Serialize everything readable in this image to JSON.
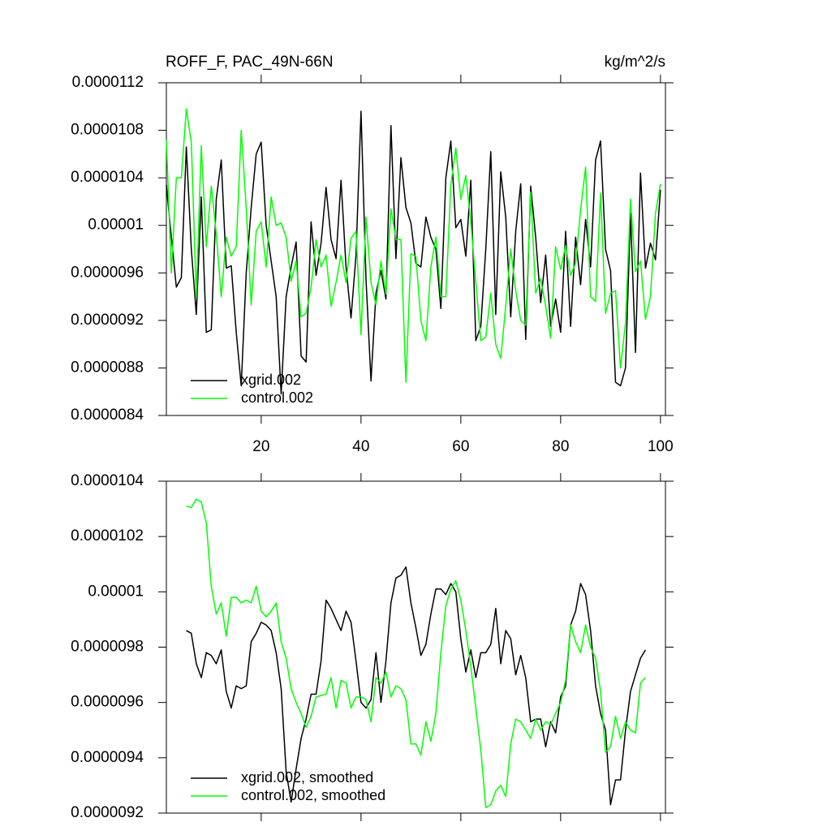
{
  "chart_data": [
    {
      "type": "line",
      "title": "ROFF_F, PAC_49N-66N",
      "units": "kg/m^2/s",
      "x": [
        1,
        2,
        3,
        4,
        5,
        6,
        7,
        8,
        9,
        10,
        11,
        12,
        13,
        14,
        15,
        16,
        17,
        18,
        19,
        20,
        21,
        22,
        23,
        24,
        25,
        26,
        27,
        28,
        29,
        30,
        31,
        32,
        33,
        34,
        35,
        36,
        37,
        38,
        39,
        40,
        41,
        42,
        43,
        44,
        45,
        46,
        47,
        48,
        49,
        50,
        51,
        52,
        53,
        54,
        55,
        56,
        57,
        58,
        59,
        60,
        61,
        62,
        63,
        64,
        65,
        66,
        67,
        68,
        69,
        70,
        71,
        72,
        73,
        74,
        75,
        76,
        77,
        78,
        79,
        80,
        81,
        82,
        83,
        84,
        85,
        86,
        87,
        88,
        89,
        90,
        91,
        92,
        93,
        94,
        95,
        96,
        97,
        98,
        99,
        100
      ],
      "series": [
        {
          "name": "xgrid.002",
          "color": "#000000",
          "values": [
            1.034e-05,
            9.9e-06,
            9.48e-06,
            9.56e-06,
            1.066e-05,
            9.8e-06,
            9.25e-06,
            1.024e-05,
            9.1e-06,
            9.12e-06,
            1.022e-05,
            1.055e-05,
            9.64e-06,
            9.66e-06,
            9.1e-06,
            8.65e-06,
            9.6e-06,
            1.015e-05,
            1.06e-05,
            1.07e-05,
            1e-05,
            9.7e-06,
            9.4e-06,
            8.58e-06,
            9.4e-06,
            9.65e-06,
            9.86e-06,
            8.9e-06,
            8.85e-06,
            1.003e-05,
            9.58e-06,
            9.85e-06,
            1.032e-05,
            9.88e-06,
            9.72e-06,
            1.038e-05,
            9.65e-06,
            9.22e-06,
            9.75e-06,
            1.096e-05,
            9.55e-06,
            8.69e-06,
            9.43e-06,
            9.62e-06,
            9.38e-06,
            1.084e-05,
            9.72e-06,
            1.057e-05,
            1.015e-05,
            1.002e-05,
            9.68e-06,
            9.65e-06,
            1.007e-05,
            9.9e-06,
            9.8e-06,
            9.3e-06,
            1.04e-05,
            1.071e-05,
            9.98e-06,
            1.005e-05,
            9.74e-06,
            1.038e-05,
            9.03e-06,
            9.15e-06,
            9.8e-06,
            1.062e-05,
            9.25e-06,
            1.045e-05,
            1.007e-05,
            9.23e-06,
            9.95e-06,
            1.035e-05,
            9.04e-06,
            1.033e-05,
            9.9e-06,
            9.35e-06,
            9.75e-06,
            9.15e-06,
            9.38e-06,
            9.1e-06,
            9.95e-06,
            9.15e-06,
            9.9e-06,
            9.5e-06,
            1.005e-05,
            9.65e-06,
            1.055e-05,
            1.071e-05,
            9.8e-06,
            9.62e-06,
            8.68e-06,
            8.65e-06,
            8.8e-06,
            1.01e-05,
            8.93e-06,
            1.044e-05,
            9.64e-06,
            9.85e-06,
            9.71e-06,
            1.03e-05
          ]
        },
        {
          "name": "control.002",
          "color": "#00ff00",
          "values": [
            1.072e-05,
            9.6e-06,
            1.04e-05,
            1.04e-05,
            1.098e-05,
            1.07e-05,
            9.4e-06,
            1.067e-05,
            9.82e-06,
            1.033e-05,
            9.93e-06,
            9.4e-06,
            9.9e-06,
            9.74e-06,
            9.82e-06,
            1.08e-05,
            1.015e-05,
            9.33e-06,
            9.95e-06,
            1.003e-05,
            9.65e-06,
            1.024e-05,
            1e-05,
            1.002e-05,
            9.9e-06,
            9.53e-06,
            9.7e-06,
            9.23e-06,
            9.26e-06,
            9.48e-06,
            9.88e-06,
            9.65e-06,
            9.75e-06,
            9.32e-06,
            9.52e-06,
            9.75e-06,
            9.52e-06,
            9.89e-06,
            9.95e-06,
            9.08e-06,
            1.007e-05,
            9.52e-06,
            9.33e-06,
            9.7e-06,
            9.42e-06,
            1.014e-05,
            9.88e-06,
            9.88e-06,
            8.68e-06,
            9.76e-06,
            9.74e-06,
            9.2e-06,
            9.03e-06,
            9.65e-06,
            9.9e-06,
            9.4e-06,
            9.4e-06,
            1.034e-05,
            1.065e-05,
            1.022e-05,
            1.042e-05,
            1.003e-05,
            9.53e-06,
            9.03e-06,
            9.06e-06,
            9.43e-06,
            9e-06,
            8.88e-06,
            9.32e-06,
            9.8e-06,
            9.45e-06,
            9.2e-06,
            9.16e-06,
            1.028e-05,
            9.43e-06,
            9.55e-06,
            9.32e-06,
            9.05e-06,
            9.82e-06,
            9.63e-06,
            9.83e-06,
            9.58e-06,
            9.68e-06,
            1.013e-05,
            1.049e-05,
            9.4e-06,
            9.36e-06,
            1.027e-05,
            9.26e-06,
            9.43e-06,
            9.45e-06,
            8.8e-06,
            9.18e-06,
            1.022e-05,
            9.61e-06,
            9.7e-06,
            9.21e-06,
            9.4e-06,
            1.01e-05,
            1.035e-05
          ]
        }
      ],
      "xlim": [
        1,
        101
      ],
      "xticks": [
        20,
        40,
        60,
        80,
        100
      ],
      "ylim": [
        8.4e-06,
        1.12e-05
      ],
      "yticks": [
        8.4e-06,
        8.8e-06,
        9.2e-06,
        9.6e-06,
        1e-05,
        1.04e-05,
        1.08e-05,
        1.12e-05
      ],
      "xtick_labels": true,
      "legend": "lower left"
    },
    {
      "type": "line",
      "x": [
        5,
        6,
        7,
        8,
        9,
        10,
        11,
        12,
        13,
        14,
        15,
        16,
        17,
        18,
        19,
        20,
        21,
        22,
        23,
        24,
        25,
        26,
        27,
        28,
        29,
        30,
        31,
        32,
        33,
        34,
        35,
        36,
        37,
        38,
        39,
        40,
        41,
        42,
        43,
        44,
        45,
        46,
        47,
        48,
        49,
        50,
        51,
        52,
        53,
        54,
        55,
        56,
        57,
        58,
        59,
        60,
        61,
        62,
        63,
        64,
        65,
        66,
        67,
        68,
        69,
        70,
        71,
        72,
        73,
        74,
        75,
        76,
        77,
        78,
        79,
        80,
        81,
        82,
        83,
        84,
        85,
        86,
        87,
        88,
        89,
        90,
        91,
        92,
        93,
        94,
        95,
        96,
        97
      ],
      "series": [
        {
          "name": "xgrid.002, smoothed",
          "color": "#000000",
          "values": [
            9.86e-06,
            9.85e-06,
            9.74e-06,
            9.69e-06,
            9.78e-06,
            9.77e-06,
            9.74e-06,
            9.79e-06,
            9.64e-06,
            9.58e-06,
            9.66e-06,
            9.65e-06,
            9.66e-06,
            9.82e-06,
            9.85e-06,
            9.89e-06,
            9.88e-06,
            9.86e-06,
            9.78e-06,
            9.65e-06,
            9.35e-06,
            9.24e-06,
            9.36e-06,
            9.47e-06,
            9.54e-06,
            9.63e-06,
            9.63e-06,
            9.75e-06,
            9.97e-06,
            9.94e-06,
            9.9e-06,
            9.86e-06,
            9.93e-06,
            9.89e-06,
            9.75e-06,
            9.6e-06,
            9.58e-06,
            9.61e-06,
            9.78e-06,
            9.6e-06,
            9.75e-06,
            9.96e-06,
            1.005e-05,
            1.006e-05,
            1.009e-05,
            9.96e-06,
            9.87e-06,
            9.77e-06,
            9.81e-06,
            9.92e-06,
            1.001e-05,
            1.001e-05,
            9.99e-06,
            1.003e-05,
            1e-05,
            9.83e-06,
            9.71e-06,
            9.79e-06,
            9.69e-06,
            9.78e-06,
            9.78e-06,
            9.81e-06,
            9.94e-06,
            9.74e-06,
            9.86e-06,
            9.83e-06,
            9.7e-06,
            9.77e-06,
            9.69e-06,
            9.53e-06,
            9.54e-06,
            9.54e-06,
            9.44e-06,
            9.53e-06,
            9.49e-06,
            9.62e-06,
            9.66e-06,
            9.88e-06,
            9.93e-06,
            1.003e-05,
            9.99e-06,
            9.86e-06,
            9.66e-06,
            9.56e-06,
            9.5e-06,
            9.23e-06,
            9.32e-06,
            9.32e-06,
            9.5e-06,
            9.64e-06,
            9.7e-06,
            9.76e-06,
            9.79e-06
          ]
        },
        {
          "name": "control.002, smoothed",
          "color": "#00ff00",
          "values": [
            1.031e-05,
            1.0305e-05,
            1.0335e-05,
            1.0325e-05,
            1.025e-05,
            1.002e-05,
            9.92e-06,
            9.96e-06,
            9.84e-06,
            9.98e-06,
            9.98e-06,
            9.96e-06,
            9.97e-06,
            9.96e-06,
            1.002e-05,
            9.93e-06,
            9.91e-06,
            9.93e-06,
            9.96e-06,
            9.82e-06,
            9.76e-06,
            9.65e-06,
            9.6e-06,
            9.56e-06,
            9.51e-06,
            9.55e-06,
            9.62e-06,
            9.625e-06,
            9.63e-06,
            9.69e-06,
            9.58e-06,
            9.68e-06,
            9.67e-06,
            9.58e-06,
            9.62e-06,
            9.62e-06,
            9.61e-06,
            9.53e-06,
            9.69e-06,
            9.67e-06,
            9.71e-06,
            9.62e-06,
            9.66e-06,
            9.65e-06,
            9.61e-06,
            9.45e-06,
            9.45e-06,
            9.41e-06,
            9.53e-06,
            9.46e-06,
            9.56e-06,
            9.78e-06,
            9.95e-06,
            1.001e-05,
            1.004e-05,
            9.97e-06,
            9.86e-06,
            9.73e-06,
            9.58e-06,
            9.43e-06,
            9.22e-06,
            9.23e-06,
            9.28e-06,
            9.3e-06,
            9.26e-06,
            9.45e-06,
            9.54e-06,
            9.53e-06,
            9.5e-06,
            9.47e-06,
            9.54e-06,
            9.5e-06,
            9.53e-06,
            9.52e-06,
            9.56e-06,
            9.6e-06,
            9.68e-06,
            9.88e-06,
            9.82e-06,
            9.78e-06,
            9.88e-06,
            9.8e-06,
            9.76e-06,
            9.64e-06,
            9.42e-06,
            9.44e-06,
            9.55e-06,
            9.47e-06,
            9.53e-06,
            9.5e-06,
            9.49e-06,
            9.67e-06,
            9.69e-06
          ]
        }
      ],
      "xlim": [
        1,
        101
      ],
      "xticks": [
        20,
        40,
        60,
        80,
        100
      ],
      "ylim": [
        9.2e-06,
        1.04e-05
      ],
      "yticks": [
        9.2e-06,
        9.4e-06,
        9.6e-06,
        9.8e-06,
        1e-05,
        1.02e-05,
        1.04e-05
      ],
      "xtick_labels": false,
      "legend": "lower left"
    }
  ]
}
